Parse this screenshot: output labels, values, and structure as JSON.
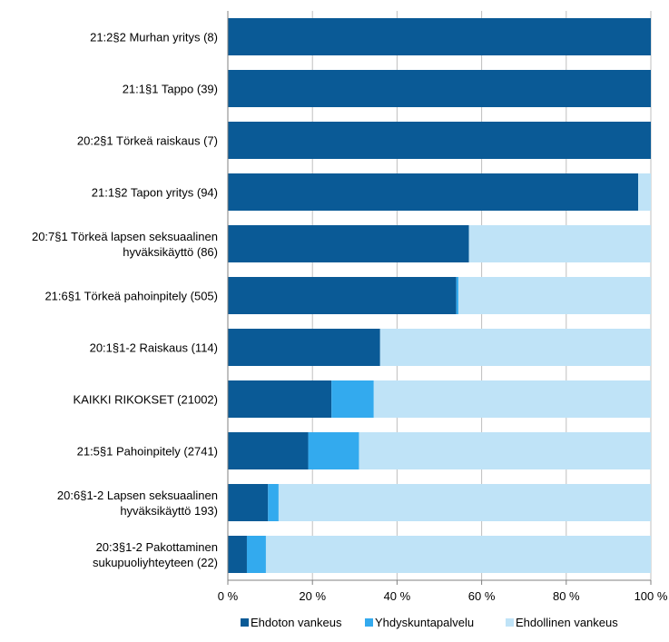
{
  "chart_data": {
    "type": "bar",
    "orientation": "horizontal",
    "stacked": "percent",
    "categories": [
      [
        "21:2§2 Murhan yritys (8)"
      ],
      [
        "21:1§1 Tappo (39)"
      ],
      [
        "20:2§1 Törkeä raiskaus (7)"
      ],
      [
        "21:1§2 Tapon yritys (94)"
      ],
      [
        "20:7§1 Törkeä lapsen seksuaalinen",
        "hyväksikäyttö (86)"
      ],
      [
        "21:6§1 Törkeä pahoinpitely (505)"
      ],
      [
        "20:1§1-2 Raiskaus (114)"
      ],
      [
        "KAIKKI RIKOKSET (21002)"
      ],
      [
        "21:5§1 Pahoinpitely (2741)"
      ],
      [
        "20:6§1-2 Lapsen seksuaalinen",
        "hyväksikäyttö 193)"
      ],
      [
        "20:3§1-2 Pakottaminen",
        "sukupuoliyhteyteen (22)"
      ]
    ],
    "series": [
      {
        "name": "Ehdoton vankeus",
        "color": "#0a5a96",
        "values": [
          100,
          100,
          100,
          97,
          57,
          54,
          36,
          24.5,
          19,
          9.5,
          4.5
        ]
      },
      {
        "name": "Yhdyskuntapalvelu",
        "color": "#33aaee",
        "values": [
          0,
          0,
          0,
          0,
          0,
          0.5,
          0,
          10,
          12,
          2.5,
          4.5
        ]
      },
      {
        "name": "Ehdollinen vankeus",
        "color": "#bfe3f7",
        "values": [
          0,
          0,
          0,
          3,
          43,
          45.5,
          64,
          65.5,
          69,
          88,
          91
        ]
      }
    ],
    "xlim": [
      0,
      100
    ],
    "xticks": [
      "0 %",
      "20 %",
      "40 %",
      "60 %",
      "80 %",
      "100 %"
    ],
    "grid": true,
    "legend_position": "bottom"
  }
}
